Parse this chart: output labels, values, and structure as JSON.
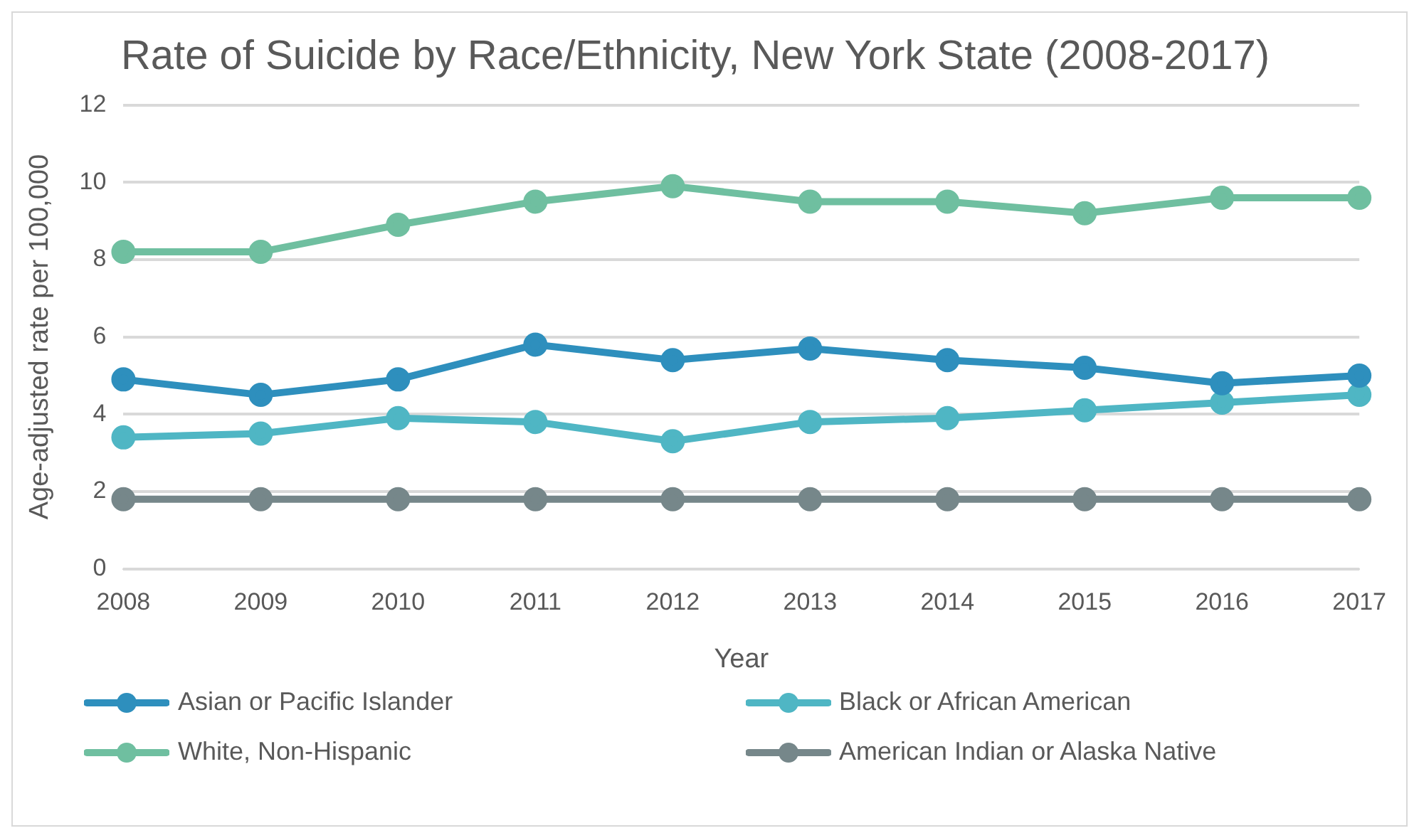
{
  "chart_data": {
    "type": "line",
    "title": "Rate of Suicide by Race/Ethnicity, New York State (2008-2017)",
    "xlabel": "Year",
    "ylabel": "Age-adjusted rate per 100,000",
    "categories": [
      "2008",
      "2009",
      "2010",
      "2011",
      "2012",
      "2013",
      "2014",
      "2015",
      "2016",
      "2017"
    ],
    "series": [
      {
        "name": "Asian or Pacific Islander",
        "color": "#2e8fbd",
        "values": [
          4.9,
          4.5,
          4.9,
          5.8,
          5.4,
          5.7,
          5.4,
          5.2,
          4.8,
          5.0
        ]
      },
      {
        "name": "Black or African American",
        "color": "#4fb6c4",
        "values": [
          3.4,
          3.5,
          3.9,
          3.8,
          3.3,
          3.8,
          3.9,
          4.1,
          4.3,
          4.5
        ]
      },
      {
        "name": "White, Non-Hispanic",
        "color": "#6fbfa0",
        "values": [
          8.2,
          8.2,
          8.9,
          9.5,
          9.9,
          9.5,
          9.5,
          9.2,
          9.6,
          9.6
        ]
      },
      {
        "name": "American Indian or Alaska Native",
        "color": "#76878a",
        "values": [
          1.8,
          1.8,
          1.8,
          1.8,
          1.8,
          1.8,
          1.8,
          1.8,
          1.8,
          1.8
        ]
      }
    ],
    "ylim": [
      0,
      12
    ],
    "yticks": [
      0,
      2,
      4,
      6,
      8,
      10,
      12
    ],
    "grid": "y",
    "legend": "bottom",
    "marker": "circle",
    "line_style": "solid"
  }
}
